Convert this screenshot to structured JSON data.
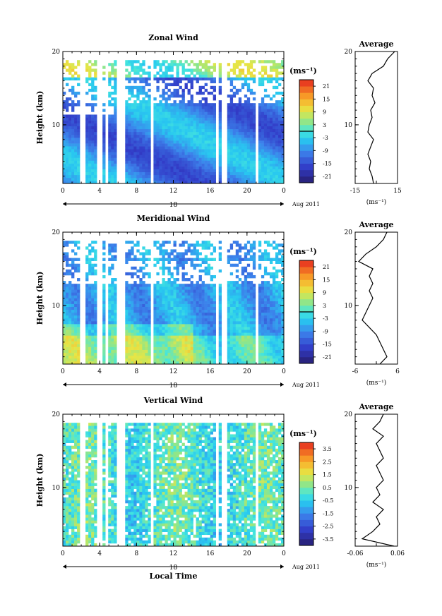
{
  "chart_data": [
    {
      "type": "heatmap",
      "title": "Zonal Wind",
      "ylabel": "Height (km)",
      "xlabel": "",
      "x_ticks": [
        "0",
        "4",
        "8",
        "12",
        "16",
        "20",
        "0"
      ],
      "y_ticks": [
        "10",
        "20"
      ],
      "xlim": [
        0,
        24
      ],
      "ylim": [
        2,
        20
      ],
      "day_label": "18",
      "date_label": "Aug 2011",
      "colorbar": {
        "unit": "(ms⁻¹)",
        "min": -24,
        "max": 24,
        "ticks": [
          "21",
          "15",
          "9",
          "3",
          "-3",
          "-9",
          "-15",
          "-21"
        ],
        "tick_values": [
          21,
          15,
          9,
          3,
          -3,
          -9,
          -15,
          -21
        ],
        "zero_line": 0
      },
      "profile": {
        "title": "Average",
        "x_ticks": [
          "-15",
          "15"
        ],
        "xlim": [
          -15,
          15
        ],
        "y_ticks": [
          "10",
          "20"
        ],
        "xlabel": "(ms⁻¹)",
        "heights": [
          2,
          3,
          4,
          5,
          6,
          7,
          8,
          9,
          10,
          11,
          12,
          13,
          14,
          15,
          16,
          17,
          18,
          19,
          20
        ],
        "values": [
          -2,
          -3,
          -5,
          -4,
          -6,
          -4,
          -2,
          -6,
          -5,
          -3,
          -4,
          -1,
          -3,
          -2,
          -6,
          -3,
          5,
          8,
          13
        ]
      }
    },
    {
      "type": "heatmap",
      "title": "Meridional Wind",
      "ylabel": "Height (km)",
      "xlabel": "",
      "x_ticks": [
        "0",
        "4",
        "8",
        "12",
        "16",
        "20",
        "0"
      ],
      "y_ticks": [
        "10",
        "20"
      ],
      "xlim": [
        0,
        24
      ],
      "ylim": [
        2,
        20
      ],
      "day_label": "18",
      "date_label": "Aug 2011",
      "colorbar": {
        "unit": "(ms⁻¹)",
        "min": -24,
        "max": 24,
        "ticks": [
          "21",
          "15",
          "9",
          "3",
          "-3",
          "-9",
          "-15",
          "-21"
        ],
        "tick_values": [
          21,
          15,
          9,
          3,
          -3,
          -9,
          -15,
          -21
        ],
        "zero_line": 0
      },
      "profile": {
        "title": "Average",
        "x_ticks": [
          "-6",
          "6"
        ],
        "xlim": [
          -6,
          6
        ],
        "y_ticks": [
          "10",
          "20"
        ],
        "xlabel": "(ms⁻¹)",
        "heights": [
          2,
          3,
          4,
          5,
          6,
          7,
          8,
          9,
          10,
          11,
          12,
          13,
          14,
          15,
          16,
          17,
          18,
          19,
          20
        ],
        "values": [
          1,
          3,
          2,
          1,
          0,
          -2,
          -4,
          -3,
          -2,
          -1,
          -2,
          -1,
          -2,
          -1,
          -5,
          -3,
          0,
          2,
          3
        ]
      }
    },
    {
      "type": "heatmap",
      "title": "Vertical Wind",
      "ylabel": "Height (km)",
      "xlabel": "Local Time",
      "x_ticks": [
        "0",
        "4",
        "8",
        "12",
        "16",
        "20",
        "0"
      ],
      "y_ticks": [
        "10",
        "20"
      ],
      "xlim": [
        0,
        24
      ],
      "ylim": [
        2,
        20
      ],
      "day_label": "18",
      "date_label": "Aug 2011",
      "colorbar": {
        "unit": "(ms⁻¹)",
        "min": -4,
        "max": 4,
        "ticks": [
          "3.5",
          "2.5",
          "1.5",
          "0.5",
          "-0.5",
          "-1.5",
          "-2.5",
          "-3.5"
        ],
        "tick_values": [
          3.5,
          2.5,
          1.5,
          0.5,
          -0.5,
          -1.5,
          -2.5,
          -3.5
        ],
        "zero_line": null
      },
      "profile": {
        "title": "Average",
        "x_ticks": [
          "-0.06",
          "0.06"
        ],
        "xlim": [
          -0.06,
          0.06
        ],
        "y_ticks": [
          "10",
          "20"
        ],
        "xlabel": "(ms⁻¹)",
        "heights": [
          2,
          3,
          4,
          5,
          6,
          7,
          8,
          9,
          10,
          11,
          12,
          13,
          14,
          15,
          16,
          17,
          18,
          19,
          20
        ],
        "values": [
          0.05,
          -0.04,
          -0.01,
          0.01,
          0.0,
          0.02,
          -0.01,
          0.01,
          0.0,
          0.02,
          0.01,
          0.0,
          0.02,
          0.01,
          0.0,
          0.02,
          -0.01,
          0.01,
          0.02
        ]
      }
    }
  ]
}
